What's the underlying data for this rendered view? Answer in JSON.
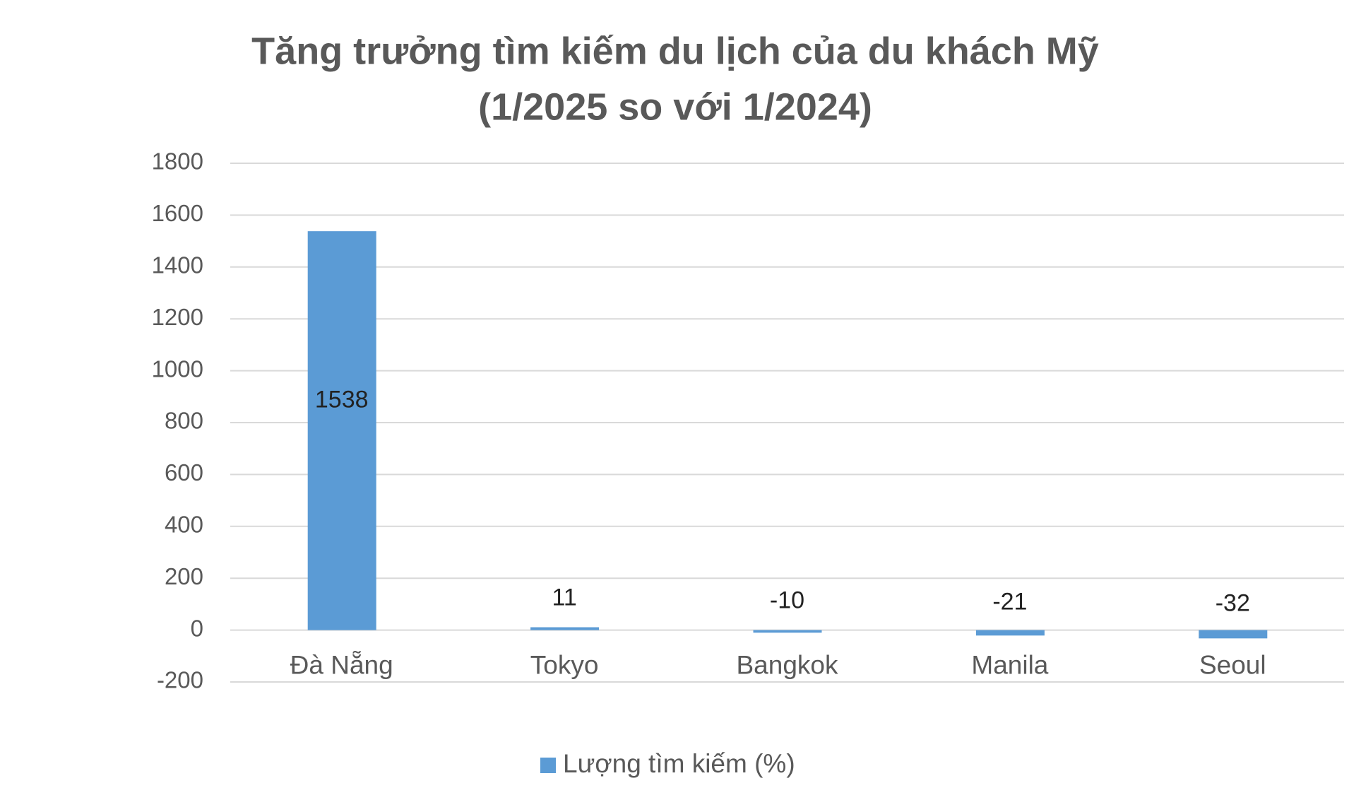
{
  "chart_data": {
    "type": "bar",
    "title": [
      "Tăng trưởng tìm kiếm du lịch của du khách Mỹ",
      "(1/2025 so với 1/2024)"
    ],
    "categories": [
      "Đà Nẵng",
      "Tokyo",
      "Bangkok",
      "Manila",
      "Seoul"
    ],
    "series": [
      {
        "name": "Lượng tìm kiếm (%)",
        "color": "#5b9bd5",
        "values": [
          1538,
          11,
          -10,
          -21,
          -32
        ]
      }
    ],
    "ylim": [
      -200,
      1800
    ],
    "yticks": [
      -200,
      0,
      200,
      400,
      600,
      800,
      1000,
      1200,
      1400,
      1600,
      1800
    ],
    "grid": true,
    "legend": "bottom"
  }
}
